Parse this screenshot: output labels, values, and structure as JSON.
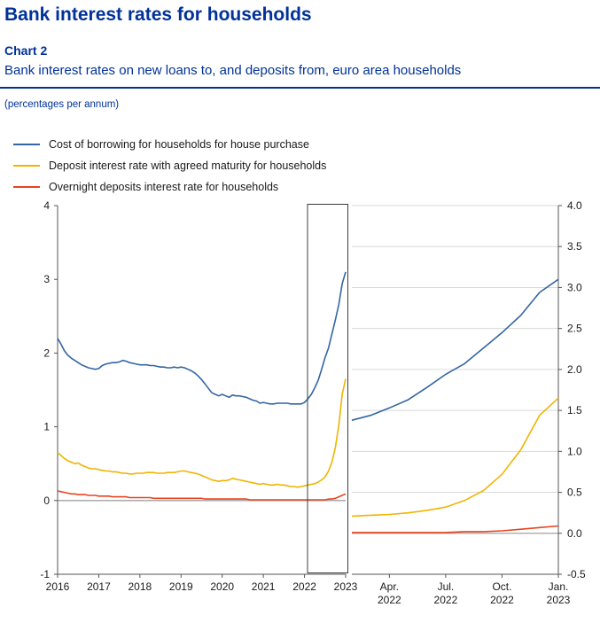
{
  "page": {
    "title": "Bank interest rates for households",
    "chart_label": "Chart 2",
    "subtitle": "Bank interest rates on new loans to, and deposits from, euro area households",
    "unit_note": "(percentages per annum)"
  },
  "colors": {
    "heading": "#003299",
    "rule": "#003299",
    "axis_text": "#1a1a1a",
    "axis_line": "#555555",
    "grid_line": "#d9d9d9",
    "zero_line": "#a3a3a3",
    "highlight_box": "#3c3c3c"
  },
  "chart_data": {
    "type": "line",
    "title": "Bank interest rates on new loans to, and deposits from, euro area households",
    "unit": "percentages per annum",
    "legend_position": "top-left",
    "frequency": "monthly",
    "x_start": "2016-01",
    "x_end": "2023-01",
    "zoom_start_index": 73,
    "highlight_span": [
      "2022-02",
      "2023-01"
    ],
    "panels": [
      {
        "name": "full-period",
        "ylim": [
          -1,
          4
        ],
        "y_tick_values": [
          4,
          3,
          2,
          1,
          0,
          -1
        ],
        "y_tick_labels": [
          "4",
          "3",
          "2",
          "1",
          "0",
          "-1"
        ],
        "y_axis_side": "left",
        "grid": "zero-line-only",
        "x_tick_labels": [
          "2016",
          "2017",
          "2018",
          "2019",
          "2020",
          "2021",
          "2022",
          "2023"
        ]
      },
      {
        "name": "zoom-feb2022-jan2023",
        "ylim": [
          -0.5,
          4.0
        ],
        "y_tick_values": [
          4.0,
          3.5,
          3.0,
          2.5,
          2.0,
          1.5,
          1.0,
          0.5,
          0.0,
          -0.5
        ],
        "y_tick_labels": [
          "4.0",
          "3.5",
          "3.0",
          "2.5",
          "2.0",
          "1.5",
          "1.0",
          "0.5",
          "0.0",
          "-0.5"
        ],
        "y_axis_side": "right",
        "grid": "horizontal-0.5-steps",
        "x_tick_month_offsets": [
          2,
          5,
          8,
          11
        ],
        "x_tick_labels": [
          [
            "Apr.",
            "2022"
          ],
          [
            "Jul.",
            "2022"
          ],
          [
            "Oct.",
            "2022"
          ],
          [
            "Jan.",
            "2023"
          ]
        ]
      }
    ],
    "series": [
      {
        "name": "Cost of borrowing for households for house purchase",
        "color": "#3465a4",
        "values": [
          2.2,
          2.12,
          2.03,
          1.97,
          1.93,
          1.9,
          1.87,
          1.84,
          1.82,
          1.8,
          1.79,
          1.78,
          1.79,
          1.83,
          1.85,
          1.86,
          1.87,
          1.87,
          1.88,
          1.9,
          1.89,
          1.87,
          1.86,
          1.85,
          1.84,
          1.84,
          1.84,
          1.83,
          1.83,
          1.82,
          1.81,
          1.81,
          1.8,
          1.8,
          1.81,
          1.8,
          1.81,
          1.8,
          1.78,
          1.76,
          1.73,
          1.69,
          1.64,
          1.58,
          1.52,
          1.46,
          1.44,
          1.42,
          1.44,
          1.42,
          1.4,
          1.43,
          1.42,
          1.42,
          1.41,
          1.4,
          1.38,
          1.36,
          1.35,
          1.32,
          1.33,
          1.32,
          1.31,
          1.31,
          1.32,
          1.32,
          1.32,
          1.32,
          1.31,
          1.31,
          1.31,
          1.31,
          1.33,
          1.38,
          1.44,
          1.53,
          1.63,
          1.78,
          1.94,
          2.07,
          2.26,
          2.45,
          2.66,
          2.94,
          3.1
        ]
      },
      {
        "name": "Deposit interest rate with agreed maturity for households",
        "color": "#f0b400",
        "values": [
          0.65,
          0.61,
          0.57,
          0.54,
          0.52,
          0.5,
          0.51,
          0.48,
          0.46,
          0.44,
          0.43,
          0.43,
          0.42,
          0.41,
          0.4,
          0.4,
          0.39,
          0.39,
          0.38,
          0.37,
          0.37,
          0.36,
          0.36,
          0.37,
          0.37,
          0.37,
          0.38,
          0.38,
          0.38,
          0.37,
          0.37,
          0.37,
          0.38,
          0.38,
          0.38,
          0.39,
          0.4,
          0.4,
          0.39,
          0.38,
          0.37,
          0.36,
          0.34,
          0.32,
          0.3,
          0.28,
          0.27,
          0.26,
          0.27,
          0.27,
          0.28,
          0.3,
          0.29,
          0.28,
          0.27,
          0.26,
          0.25,
          0.24,
          0.23,
          0.22,
          0.23,
          0.22,
          0.21,
          0.21,
          0.22,
          0.21,
          0.21,
          0.2,
          0.19,
          0.19,
          0.18,
          0.19,
          0.2,
          0.21,
          0.22,
          0.23,
          0.25,
          0.28,
          0.32,
          0.4,
          0.52,
          0.72,
          1.02,
          1.44,
          1.65
        ]
      },
      {
        "name": "Overnight deposits interest rate for households",
        "color": "#e8441f",
        "values": [
          0.13,
          0.12,
          0.11,
          0.1,
          0.09,
          0.09,
          0.08,
          0.08,
          0.08,
          0.07,
          0.07,
          0.07,
          0.06,
          0.06,
          0.06,
          0.06,
          0.05,
          0.05,
          0.05,
          0.05,
          0.05,
          0.04,
          0.04,
          0.04,
          0.04,
          0.04,
          0.04,
          0.04,
          0.03,
          0.03,
          0.03,
          0.03,
          0.03,
          0.03,
          0.03,
          0.03,
          0.03,
          0.03,
          0.03,
          0.03,
          0.03,
          0.03,
          0.03,
          0.02,
          0.02,
          0.02,
          0.02,
          0.02,
          0.02,
          0.02,
          0.02,
          0.02,
          0.02,
          0.02,
          0.02,
          0.02,
          0.01,
          0.01,
          0.01,
          0.01,
          0.01,
          0.01,
          0.01,
          0.01,
          0.01,
          0.01,
          0.01,
          0.01,
          0.01,
          0.01,
          0.01,
          0.01,
          0.01,
          0.01,
          0.01,
          0.01,
          0.01,
          0.01,
          0.01,
          0.02,
          0.02,
          0.03,
          0.05,
          0.07,
          0.09
        ]
      }
    ]
  }
}
